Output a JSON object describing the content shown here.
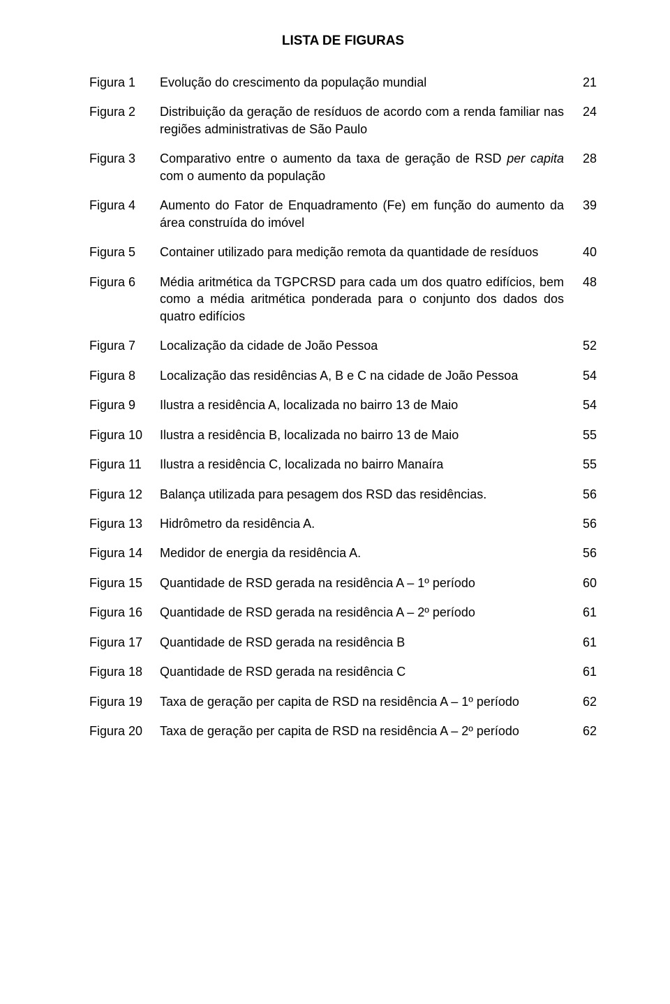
{
  "title": "LISTA DE FIGURAS",
  "label_fontsize": 18,
  "title_fontsize": 19,
  "text_color": "#000000",
  "background_color": "#ffffff",
  "entries": [
    {
      "label": "Figura 1",
      "desc": "Evolução do crescimento da população mundial",
      "page": "21"
    },
    {
      "label": "Figura 2",
      "desc": "Distribuição da geração de resíduos de acordo com a renda familiar nas regiões administrativas de São Paulo",
      "page": "24"
    },
    {
      "label": "Figura 3",
      "desc_pre": "Comparativo entre o aumento da taxa de geração de RSD ",
      "desc_italic": "per capita",
      "desc_post": " com o aumento da população",
      "page": "28"
    },
    {
      "label": "Figura 4",
      "desc": "Aumento do Fator de Enquadramento (Fe) em função do aumento da área construída do imóvel",
      "page": "39"
    },
    {
      "label": "Figura 5",
      "desc": "Container utilizado para medição remota da quantidade de resíduos",
      "page": "40"
    },
    {
      "label": "Figura 6",
      "desc": "Média aritmética da TGPCRSD para cada um dos quatro edifícios, bem como a média aritmética ponderada para o conjunto dos dados dos quatro edifícios",
      "page": "48"
    },
    {
      "label": "Figura 7",
      "desc": "Localização da cidade de João Pessoa",
      "page": "52"
    },
    {
      "label": "Figura 8",
      "desc": "Localização das residências A, B e C na cidade de João Pessoa",
      "page": "54"
    },
    {
      "label": "Figura 9",
      "desc": "Ilustra a residência A, localizada no bairro 13 de Maio",
      "page": "54"
    },
    {
      "label": "Figura 10",
      "desc": "Ilustra a residência B, localizada no bairro 13 de Maio",
      "page": "55"
    },
    {
      "label": "Figura 11",
      "desc": "Ilustra a residência C, localizada no bairro Manaíra",
      "page": "55"
    },
    {
      "label": "Figura 12",
      "desc": "Balança utilizada para pesagem dos RSD das residências.",
      "page": "56"
    },
    {
      "label": "Figura 13",
      "desc": "Hidrômetro da residência A.",
      "page": "56"
    },
    {
      "label": "Figura 14",
      "desc": "Medidor de energia da residência A.",
      "page": "56"
    },
    {
      "label": "Figura 15",
      "desc": "Quantidade de RSD gerada na residência A – 1º período",
      "page": "60"
    },
    {
      "label": "Figura 16",
      "desc": "Quantidade de RSD gerada na residência A – 2º período",
      "page": "61"
    },
    {
      "label": "Figura 17",
      "desc": "Quantidade de RSD gerada na residência B",
      "page": "61"
    },
    {
      "label": "Figura 18",
      "desc": "Quantidade de RSD gerada na residência C",
      "page": "61"
    },
    {
      "label": "Figura 19",
      "desc": "Taxa de geração per capita de RSD na residência A – 1º período",
      "page": "62"
    },
    {
      "label": "Figura 20",
      "desc": "Taxa de geração per capita de RSD na residência A – 2º período",
      "page": "62"
    }
  ]
}
